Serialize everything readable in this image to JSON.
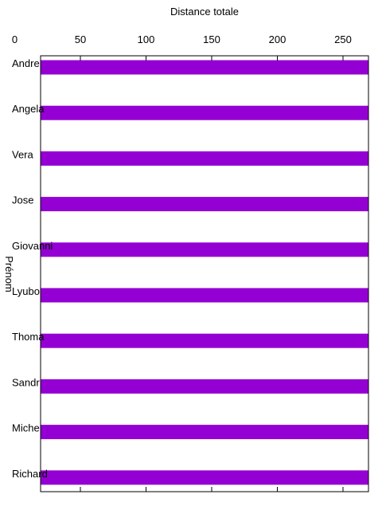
{
  "chart_data": {
    "type": "bar",
    "orientation": "horizontal",
    "title": "",
    "xlabel": "Distance totale",
    "ylabel": "Prénom",
    "x_axis_position": "top",
    "xlim": [
      0,
      275
    ],
    "x_ticks": [
      0,
      50,
      100,
      150,
      200,
      250
    ],
    "categories": [
      "Andre",
      "Angela",
      "Vera",
      "Jose",
      "Giovanni",
      "Lyubov",
      "Thomas",
      "Sandra",
      "Michel",
      "Richard"
    ],
    "category_labels_display": [
      "Andre",
      "Angela",
      "Vera",
      "Jose",
      "Giovanni",
      "Lyubo",
      "Thoma",
      "Sandr",
      "Miche",
      "Richard"
    ],
    "values": [
      275,
      275,
      275,
      275,
      275,
      275,
      275,
      275,
      275,
      275
    ],
    "bar_color": "#9400d3",
    "grid": false,
    "legend": "none"
  }
}
